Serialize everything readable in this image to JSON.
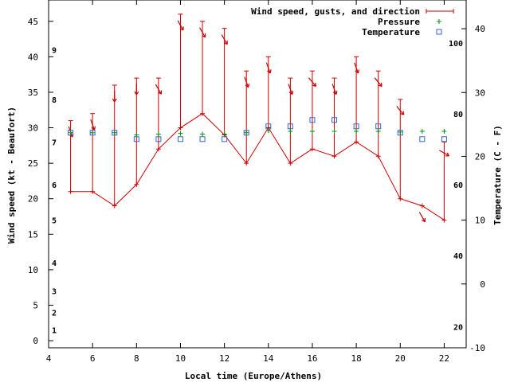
{
  "chart_data": {
    "type": "line",
    "x_axis": {
      "label": "Local time (Europe/Athens)",
      "range": [
        4,
        23
      ],
      "ticks": [
        4,
        6,
        8,
        10,
        12,
        14,
        16,
        18,
        20,
        22
      ]
    },
    "y_left": {
      "label": "Wind speed (kt - Beaufort)",
      "range": [
        -1,
        48
      ],
      "ticks": [
        0,
        5,
        10,
        15,
        20,
        25,
        30,
        35,
        40,
        45
      ]
    },
    "beaufort_scale": [
      {
        "label": "1",
        "kt": 1.5
      },
      {
        "label": "2",
        "kt": 4
      },
      {
        "label": "3",
        "kt": 7
      },
      {
        "label": "4",
        "kt": 11
      },
      {
        "label": "5",
        "kt": 17
      },
      {
        "label": "6",
        "kt": 22
      },
      {
        "label": "7",
        "kt": 28
      },
      {
        "label": "8",
        "kt": 34
      },
      {
        "label": "9",
        "kt": 41
      }
    ],
    "y_right_c": {
      "label": "Temperature (C - F)",
      "range": [
        -10,
        44.5
      ],
      "ticks": [
        -10,
        0,
        10,
        20,
        30,
        40
      ]
    },
    "y_right_f": {
      "ticks": [
        20,
        40,
        60,
        80,
        100
      ]
    },
    "legend": [
      "Wind speed, gusts, and direction",
      "Pressure",
      "Temperature"
    ],
    "wind": {
      "x": [
        5,
        6,
        7,
        8,
        9,
        10,
        11,
        12,
        13,
        14,
        15,
        16,
        17,
        18,
        19,
        20,
        21,
        22
      ],
      "speed": [
        21,
        21,
        19,
        22,
        27,
        30,
        32,
        29,
        25,
        30,
        25,
        27,
        26,
        28,
        26,
        20,
        19,
        17
      ],
      "gust": [
        31,
        32,
        36,
        37,
        37,
        46,
        45,
        44,
        38,
        40,
        37,
        38,
        37,
        40,
        38,
        34,
        null,
        28
      ],
      "direction_deg": [
        340,
        340,
        0,
        0,
        330,
        330,
        330,
        330,
        340,
        340,
        340,
        320,
        340,
        340,
        320,
        320,
        330,
        300
      ]
    },
    "pressure": {
      "x": [
        5,
        6,
        7,
        8,
        9,
        10,
        11,
        12,
        13,
        14,
        15,
        16,
        17,
        18,
        19,
        20,
        21,
        22
      ],
      "y": [
        29.3,
        29.3,
        29.3,
        29.0,
        29.1,
        29.2,
        29.1,
        29.1,
        29.3,
        29.6,
        29.5,
        29.5,
        29.5,
        29.5,
        29.5,
        29.4,
        29.5,
        29.5
      ]
    },
    "temperature": {
      "x": [
        5,
        6,
        7,
        8,
        9,
        10,
        11,
        12,
        13,
        14,
        15,
        16,
        17,
        18,
        19,
        20,
        21,
        22
      ],
      "y": [
        29.3,
        29.3,
        29.3,
        28.4,
        28.4,
        28.4,
        28.4,
        28.4,
        29.3,
        30.2,
        30.2,
        31.1,
        31.1,
        30.2,
        30.2,
        29.3,
        28.4,
        28.4
      ]
    },
    "colors": {
      "wind": "#cc0000",
      "pressure": "#009900",
      "temperature": "#3366cc",
      "axis": "#000000"
    }
  }
}
